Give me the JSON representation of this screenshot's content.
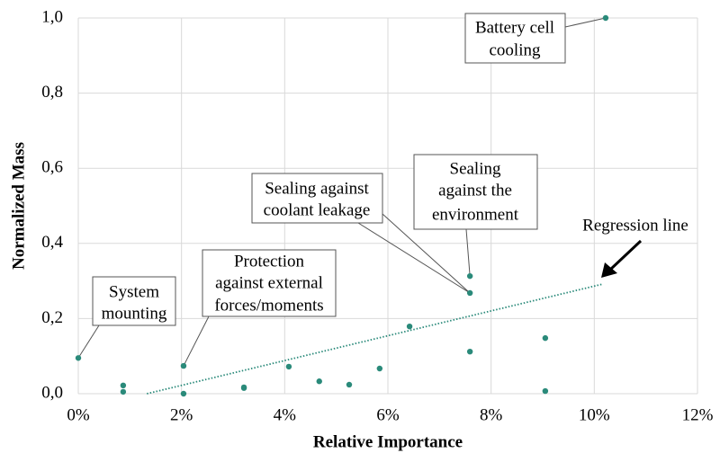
{
  "chart_data": {
    "type": "scatter",
    "xlabel": "Relative Importance",
    "ylabel": "Normalized Mass",
    "x": [
      0,
      0.87,
      0.87,
      2.04,
      2.04,
      3.21,
      3.21,
      4.08,
      4.67,
      5.25,
      5.84,
      6.42,
      7.59,
      7.59,
      7.59,
      9.05,
      9.05,
      10.22
    ],
    "y": [
      0.095,
      0.022,
      0.005,
      0.074,
      0,
      0.017,
      0.015,
      0.072,
      0.033,
      0.024,
      0.067,
      0.179,
      0.112,
      0.313,
      0.268,
      0.148,
      0.007,
      1.0
    ],
    "color": "#2a8a7a",
    "xlim": [
      0,
      12
    ],
    "ylim": [
      0,
      1.0
    ],
    "xticks": [
      {
        "value": 0,
        "label": "0%"
      },
      {
        "value": 2,
        "label": "2%"
      },
      {
        "value": 4,
        "label": "4%"
      },
      {
        "value": 6,
        "label": "6%"
      },
      {
        "value": 8,
        "label": "8%"
      },
      {
        "value": 10,
        "label": "10%"
      },
      {
        "value": 12,
        "label": "12%"
      }
    ],
    "yticks": [
      {
        "value": 0,
        "label": "0,0"
      },
      {
        "value": 0.2,
        "label": "0,2"
      },
      {
        "value": 0.4,
        "label": "0,4"
      },
      {
        "value": 0.6,
        "label": "0,6"
      },
      {
        "value": 0.8,
        "label": "0,8"
      },
      {
        "value": 1.0,
        "label": "1,0"
      }
    ],
    "grid": true,
    "regression": {
      "x": [
        1.33,
        10.17
      ],
      "y": [
        0,
        0.292
      ]
    },
    "regression_label": "Regression line",
    "annotations": [
      [
        "System",
        "mounting"
      ],
      [
        "Protection",
        "against external",
        "forces/moments"
      ],
      [
        "Sealing against",
        "coolant leakage"
      ],
      [
        "Sealing",
        "against the",
        "environment"
      ],
      [
        "Battery cell",
        "cooling"
      ]
    ]
  }
}
